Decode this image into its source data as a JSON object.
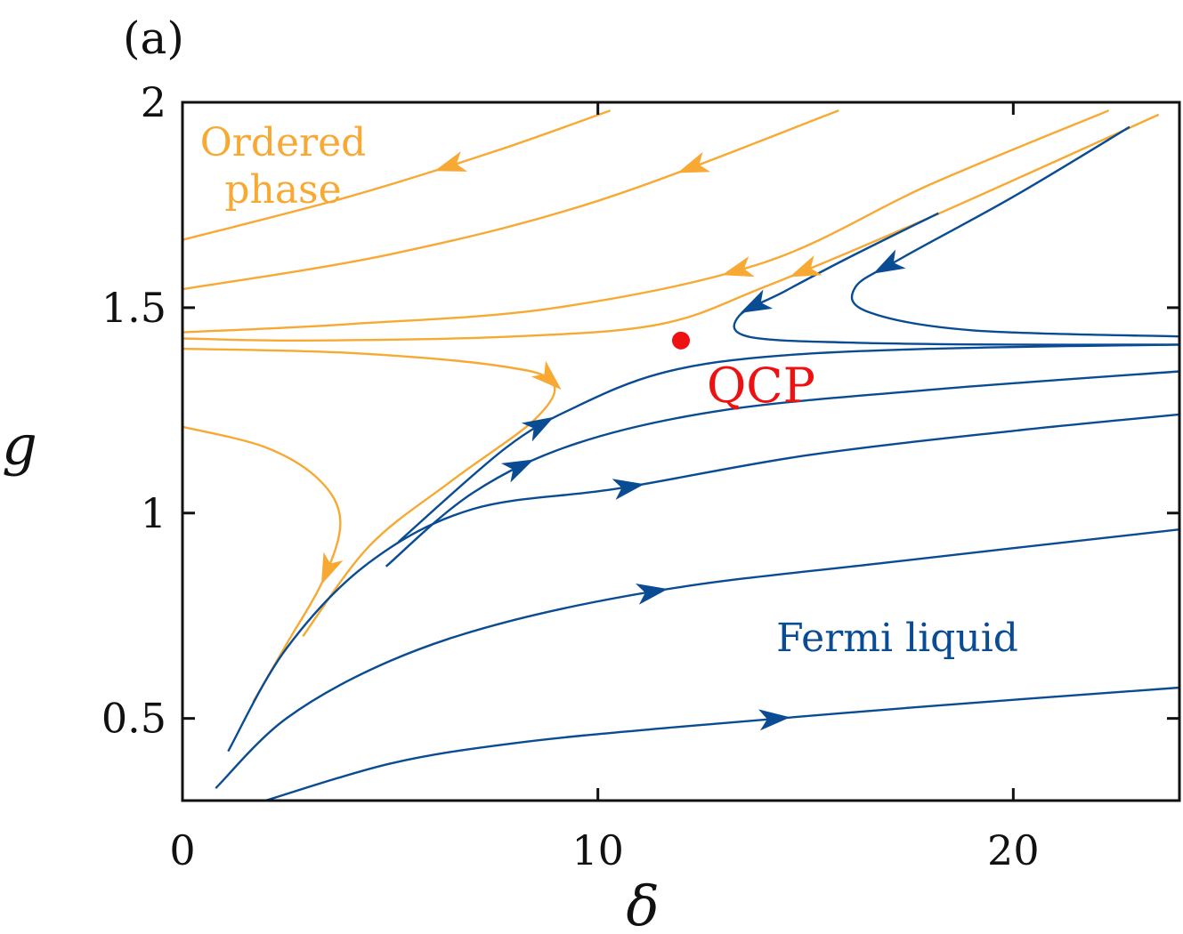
{
  "chart_data": {
    "type": "line",
    "panel_label": "(a)",
    "xlabel": "δ",
    "ylabel": "g",
    "xlim": [
      0,
      24
    ],
    "ylim": [
      0.3,
      2.0
    ],
    "xticks": [
      0,
      10,
      20
    ],
    "xtick_labels": [
      "0",
      "10",
      "20"
    ],
    "yticks": [
      0.5,
      1.0,
      1.5,
      2.0
    ],
    "ytick_labels": [
      "0.5",
      "1",
      "1.5",
      "2"
    ],
    "colors": {
      "ordered": "#F7A934",
      "fermi": "#0A4C94",
      "qcp": "#EE1111"
    },
    "annotations": {
      "ordered_line1": "Ordered",
      "ordered_line2": "phase",
      "fermi": "Fermi liquid",
      "qcp": "QCP"
    },
    "qcp_point": {
      "x": 12.0,
      "y": 1.42
    },
    "series": [
      {
        "name": "ordered-1",
        "group": "ordered",
        "points": [
          [
            10.3,
            1.98
          ],
          [
            7.5,
            1.88
          ],
          [
            4,
            1.77
          ],
          [
            0,
            1.665
          ]
        ],
        "arrow_t": 0.38
      },
      {
        "name": "ordered-2",
        "group": "ordered",
        "points": [
          [
            15.8,
            1.98
          ],
          [
            10,
            1.76
          ],
          [
            5,
            1.63
          ],
          [
            0,
            1.545
          ]
        ],
        "arrow_t": 0.23
      },
      {
        "name": "ordered-3",
        "group": "ordered",
        "points": [
          [
            22.3,
            1.98
          ],
          [
            18,
            1.8
          ],
          [
            14,
            1.61
          ],
          [
            9,
            1.5
          ],
          [
            4,
            1.46
          ],
          [
            0,
            1.44
          ]
        ],
        "arrow_t": 0.42
      },
      {
        "name": "ordered-4",
        "group": "ordered",
        "points": [
          [
            23.5,
            1.97
          ],
          [
            18,
            1.72
          ],
          [
            14,
            1.55
          ],
          [
            11.5,
            1.46
          ],
          [
            8,
            1.43
          ],
          [
            3,
            1.42
          ],
          [
            0,
            1.425
          ]
        ],
        "arrow_t": 0.38
      },
      {
        "name": "ordered-5",
        "group": "ordered",
        "points": [
          [
            0,
            1.4
          ],
          [
            4,
            1.39
          ],
          [
            7.5,
            1.36
          ],
          [
            8.9,
            1.32
          ],
          [
            8.5,
            1.23
          ],
          [
            6.5,
            1.08
          ],
          [
            4.5,
            0.92
          ],
          [
            2.9,
            0.7
          ]
        ],
        "arrow_t": 0.5
      },
      {
        "name": "ordered-6",
        "group": "ordered",
        "points": [
          [
            0,
            1.21
          ],
          [
            2,
            1.16
          ],
          [
            3.3,
            1.08
          ],
          [
            3.8,
            0.98
          ],
          [
            3.4,
            0.84
          ],
          [
            2.5,
            0.68
          ],
          [
            1.7,
            0.54
          ]
        ],
        "arrow_t": 0.62
      },
      {
        "name": "fermi-1",
        "group": "fermi",
        "points": [
          [
            5.2,
            0.93
          ],
          [
            7.8,
            1.16
          ],
          [
            9.5,
            1.26
          ],
          [
            11.5,
            1.34
          ],
          [
            14,
            1.38
          ],
          [
            18,
            1.4
          ],
          [
            24,
            1.41
          ]
        ],
        "arrow_t": 0.22
      },
      {
        "name": "fermi-2",
        "group": "fermi",
        "points": [
          [
            4.9,
            0.87
          ],
          [
            7,
            1.05
          ],
          [
            9.5,
            1.17
          ],
          [
            13,
            1.25
          ],
          [
            18,
            1.3
          ],
          [
            24,
            1.345
          ]
        ],
        "arrow_t": 0.2
      },
      {
        "name": "fermi-3",
        "group": "fermi",
        "points": [
          [
            1.1,
            0.42
          ],
          [
            2.5,
            0.67
          ],
          [
            4.5,
            0.88
          ],
          [
            7,
            1.01
          ],
          [
            10.5,
            1.06
          ],
          [
            15,
            1.14
          ],
          [
            20,
            1.2
          ],
          [
            24,
            1.24
          ]
        ],
        "arrow_t": 0.48
      },
      {
        "name": "fermi-4",
        "group": "fermi",
        "points": [
          [
            0.8,
            0.33
          ],
          [
            2.5,
            0.5
          ],
          [
            5,
            0.64
          ],
          [
            8,
            0.74
          ],
          [
            12,
            0.82
          ],
          [
            17,
            0.88
          ],
          [
            24,
            0.96
          ]
        ],
        "arrow_t": 0.48
      },
      {
        "name": "fermi-5",
        "group": "fermi",
        "points": [
          [
            2,
            0.3
          ],
          [
            5,
            0.39
          ],
          [
            8,
            0.44
          ],
          [
            12,
            0.48
          ],
          [
            18,
            0.53
          ],
          [
            24,
            0.575
          ]
        ],
        "arrow_t": 0.56
      },
      {
        "name": "fermi-6",
        "group": "fermi",
        "points": [
          [
            18.2,
            1.73
          ],
          [
            16,
            1.62
          ],
          [
            14.5,
            1.54
          ],
          [
            13.4,
            1.48
          ],
          [
            13.6,
            1.43
          ],
          [
            16,
            1.415
          ],
          [
            20,
            1.41
          ],
          [
            24,
            1.41
          ]
        ],
        "arrow_t": 0.3
      },
      {
        "name": "fermi-7",
        "group": "fermi",
        "points": [
          [
            22.8,
            1.94
          ],
          [
            20,
            1.77
          ],
          [
            17.3,
            1.62
          ],
          [
            16.2,
            1.55
          ],
          [
            16.5,
            1.49
          ],
          [
            19,
            1.445
          ],
          [
            24,
            1.43
          ]
        ],
        "arrow_t": 0.42
      }
    ]
  }
}
